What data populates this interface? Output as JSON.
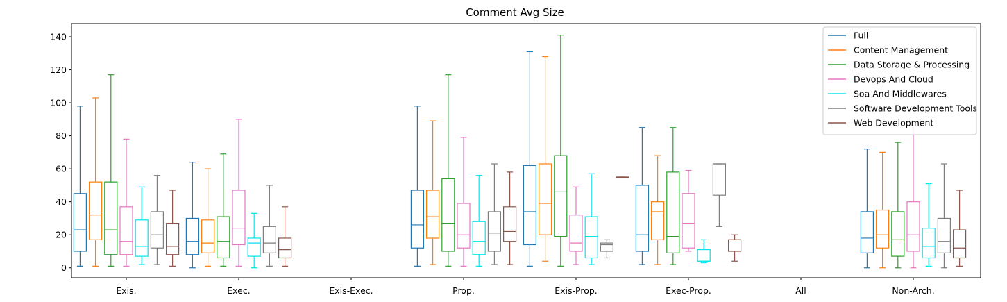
{
  "chart_data": {
    "type": "boxplot",
    "title": "Comment Avg Size",
    "xlabel": "",
    "ylabel": "",
    "ylim": [
      -6,
      148
    ],
    "yticks": [
      0,
      20,
      40,
      60,
      80,
      100,
      120,
      140
    ],
    "legend_position": "top-right",
    "categories": [
      "Exis.",
      "Exec.",
      "Exis-Exec.",
      "Prop.",
      "Exis-Prop.",
      "Exec-Prop.",
      "All",
      "Non-Arch."
    ],
    "series": [
      {
        "name": "Full",
        "color": "#1f77b4",
        "boxes": [
          {
            "min": 1,
            "q1": 10,
            "median": 23,
            "q3": 45,
            "max": 98
          },
          {
            "min": 0,
            "q1": 8,
            "median": 16,
            "q3": 30,
            "max": 64
          },
          null,
          {
            "min": 1,
            "q1": 12,
            "median": 26,
            "q3": 47,
            "max": 98
          },
          {
            "min": 1,
            "q1": 14,
            "median": 34,
            "q3": 62,
            "max": 131
          },
          {
            "min": 2,
            "q1": 10,
            "median": 20,
            "q3": 50,
            "max": 85
          },
          null,
          {
            "min": 0,
            "q1": 9,
            "median": 18,
            "q3": 34,
            "max": 72
          }
        ]
      },
      {
        "name": "Content Management",
        "color": "#ff7f0e",
        "boxes": [
          {
            "min": 1,
            "q1": 17,
            "median": 32,
            "q3": 52,
            "max": 103
          },
          {
            "min": 1,
            "q1": 9,
            "median": 15,
            "q3": 29,
            "max": 60
          },
          null,
          {
            "min": 2,
            "q1": 18,
            "median": 31,
            "q3": 47,
            "max": 89
          },
          {
            "min": 4,
            "q1": 20,
            "median": 39,
            "q3": 63,
            "max": 128
          },
          {
            "min": 2,
            "q1": 17,
            "median": 34,
            "q3": 40,
            "max": 68
          },
          null,
          {
            "min": 0,
            "q1": 12,
            "median": 20,
            "q3": 35,
            "max": 70
          }
        ]
      },
      {
        "name": "Data Storage & Processing",
        "color": "#2ca02c",
        "boxes": [
          {
            "min": 1,
            "q1": 8,
            "median": 23,
            "q3": 52,
            "max": 117
          },
          {
            "min": 1,
            "q1": 6,
            "median": 16,
            "q3": 31,
            "max": 69
          },
          null,
          {
            "min": 1,
            "q1": 10,
            "median": 27,
            "q3": 54,
            "max": 117
          },
          {
            "min": 1,
            "q1": 19,
            "median": 46,
            "q3": 68,
            "max": 141
          },
          {
            "min": 2,
            "q1": 9,
            "median": 19,
            "q3": 58,
            "max": 85
          },
          null,
          {
            "min": 0,
            "q1": 7,
            "median": 17,
            "q3": 34,
            "max": 76
          }
        ]
      },
      {
        "name": "Devops And Cloud",
        "color": "#e377c2",
        "boxes": [
          {
            "min": 1,
            "q1": 8,
            "median": 16,
            "q3": 37,
            "max": 78
          },
          {
            "min": 1,
            "q1": 14,
            "median": 24,
            "q3": 47,
            "max": 90
          },
          null,
          {
            "min": 1,
            "q1": 12,
            "median": 20,
            "q3": 39,
            "max": 79
          },
          {
            "min": 2,
            "q1": 10,
            "median": 15,
            "q3": 32,
            "max": 49
          },
          {
            "min": 10,
            "q1": 12,
            "median": 27,
            "q3": 45,
            "max": 59
          },
          null,
          {
            "min": 0,
            "q1": 10,
            "median": 20,
            "q3": 40,
            "max": 86
          }
        ]
      },
      {
        "name": "Soa And Middlewares",
        "color": "#00e5ee",
        "boxes": [
          {
            "min": 2,
            "q1": 7,
            "median": 13,
            "q3": 29,
            "max": 49
          },
          {
            "min": 0,
            "q1": 7,
            "median": 15,
            "q3": 18,
            "max": 33
          },
          null,
          {
            "min": 1,
            "q1": 8,
            "median": 16,
            "q3": 28,
            "max": 56
          },
          {
            "min": 2,
            "q1": 6,
            "median": 19,
            "q3": 31,
            "max": 57
          },
          {
            "min": 3,
            "q1": 4,
            "median": 4,
            "q3": 11,
            "max": 17
          },
          null,
          {
            "min": 1,
            "q1": 6,
            "median": 13,
            "q3": 24,
            "max": 51
          }
        ]
      },
      {
        "name": "Software Development Tools",
        "color": "#7f7f7f",
        "boxes": [
          {
            "min": 2,
            "q1": 12,
            "median": 20,
            "q3": 34,
            "max": 56
          },
          {
            "min": 1,
            "q1": 9,
            "median": 15,
            "q3": 25,
            "max": 50
          },
          null,
          {
            "min": 2,
            "q1": 10,
            "median": 21,
            "q3": 34,
            "max": 63
          },
          {
            "min": 6,
            "q1": 10,
            "median": 14,
            "q3": 15,
            "max": 17
          },
          {
            "min": 25,
            "q1": 44,
            "median": 63,
            "q3": 63,
            "max": 63
          },
          null,
          {
            "min": 0,
            "q1": 9,
            "median": 16,
            "q3": 30,
            "max": 63
          }
        ]
      },
      {
        "name": "Web Development",
        "color": "#8c564b",
        "boxes": [
          {
            "min": 1,
            "q1": 8,
            "median": 13,
            "q3": 27,
            "max": 47
          },
          {
            "min": 1,
            "q1": 6,
            "median": 11,
            "q3": 18,
            "max": 37
          },
          null,
          {
            "min": 2,
            "q1": 16,
            "median": 22,
            "q3": 37,
            "max": 58
          },
          {
            "min": 55,
            "q1": 55,
            "median": 55,
            "q3": 55,
            "max": 55
          },
          {
            "min": 4,
            "q1": 10,
            "median": 17,
            "q3": 17,
            "max": 20
          },
          null,
          {
            "min": 1,
            "q1": 6,
            "median": 12,
            "q3": 23,
            "max": 47
          }
        ]
      }
    ]
  }
}
